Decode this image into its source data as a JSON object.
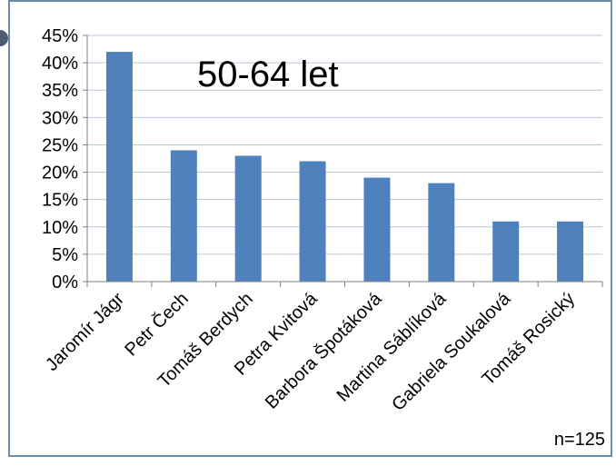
{
  "colors": {
    "bar": "#4f81bd",
    "frame": "#6a8bb0",
    "grid": "#b9c7dc",
    "axis": "#7f7f7f"
  },
  "chart_data": {
    "type": "bar",
    "title": "50-64 let",
    "categories": [
      "Jaromír Jágr",
      "Petr Čech",
      "Tomáš Berdych",
      "Petra Kvitová",
      "Barbora Špotáková",
      "Martina Sáblíková",
      "Gabriela Soukalová",
      "Tomáš Rosický"
    ],
    "values": [
      42,
      24,
      23,
      22,
      19,
      18,
      11,
      11
    ],
    "ylim": [
      0,
      45
    ],
    "yticks": [
      "0%",
      "5%",
      "10%",
      "15%",
      "20%",
      "25%",
      "30%",
      "35%",
      "40%",
      "45%"
    ],
    "grid": true,
    "note": "n=125"
  }
}
